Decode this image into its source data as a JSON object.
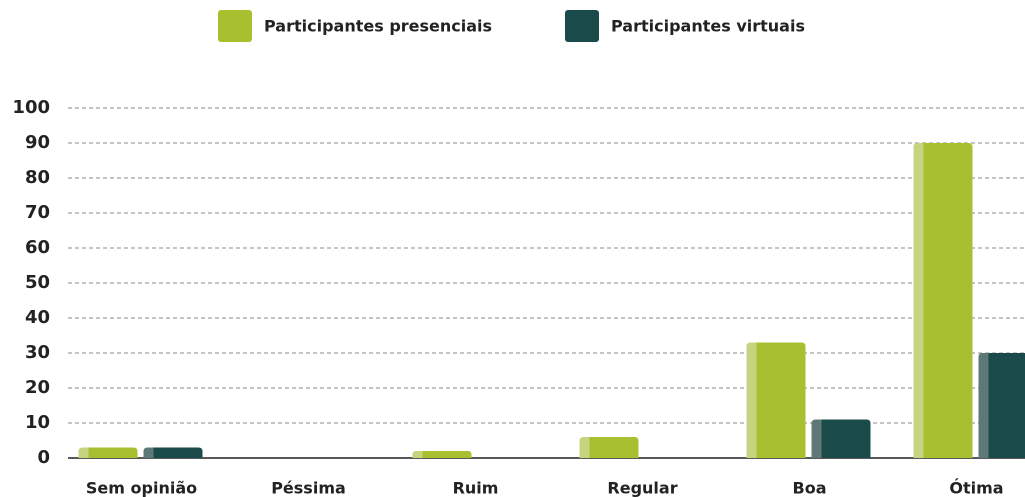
{
  "chart_data": {
    "type": "bar",
    "categories": [
      "Sem opinião",
      "Péssima",
      "Ruim",
      "Regular",
      "Boa",
      "Ótima"
    ],
    "series": [
      {
        "name": "Participantes presenciais",
        "color": "#a8bf2f",
        "values": [
          3,
          0,
          2,
          6,
          33,
          90
        ]
      },
      {
        "name": "Participantes virtuais",
        "color": "#1b4a4a",
        "values": [
          3,
          0,
          0,
          0,
          11,
          30
        ]
      }
    ],
    "ylim": [
      0,
      100
    ],
    "yticks": [
      0,
      10,
      20,
      30,
      40,
      50,
      60,
      70,
      80,
      90,
      100
    ],
    "grid": true
  }
}
